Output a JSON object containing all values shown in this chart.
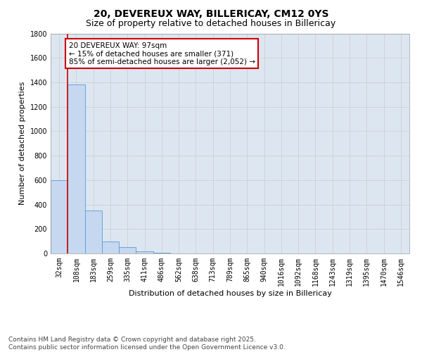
{
  "title1": "20, DEVEREUX WAY, BILLERICAY, CM12 0YS",
  "title2": "Size of property relative to detached houses in Billericay",
  "xlabel": "Distribution of detached houses by size in Billericay",
  "ylabel": "Number of detached properties",
  "categories": [
    "32sqm",
    "108sqm",
    "183sqm",
    "259sqm",
    "335sqm",
    "411sqm",
    "486sqm",
    "562sqm",
    "638sqm",
    "713sqm",
    "789sqm",
    "865sqm",
    "940sqm",
    "1016sqm",
    "1092sqm",
    "1168sqm",
    "1243sqm",
    "1319sqm",
    "1395sqm",
    "1470sqm",
    "1546sqm"
  ],
  "values": [
    600,
    1380,
    350,
    100,
    50,
    15,
    5,
    0,
    0,
    0,
    0,
    0,
    0,
    0,
    0,
    0,
    0,
    0,
    0,
    0,
    0
  ],
  "bar_color": "#c5d8f0",
  "bar_edge_color": "#5b9bd5",
  "vline_color": "#cc0000",
  "annotation_text": "20 DEVEREUX WAY: 97sqm\n← 15% of detached houses are smaller (371)\n85% of semi-detached houses are larger (2,052) →",
  "annotation_box_color": "#cc0000",
  "ylim": [
    0,
    1800
  ],
  "yticks": [
    0,
    200,
    400,
    600,
    800,
    1000,
    1200,
    1400,
    1600,
    1800
  ],
  "background_color": "#ffffff",
  "grid_color": "#cccccc",
  "footnote": "Contains HM Land Registry data © Crown copyright and database right 2025.\nContains public sector information licensed under the Open Government Licence v3.0.",
  "title1_fontsize": 10,
  "title2_fontsize": 9,
  "xlabel_fontsize": 8,
  "ylabel_fontsize": 8,
  "tick_fontsize": 7,
  "annotation_fontsize": 7.5,
  "footnote_fontsize": 6.5
}
